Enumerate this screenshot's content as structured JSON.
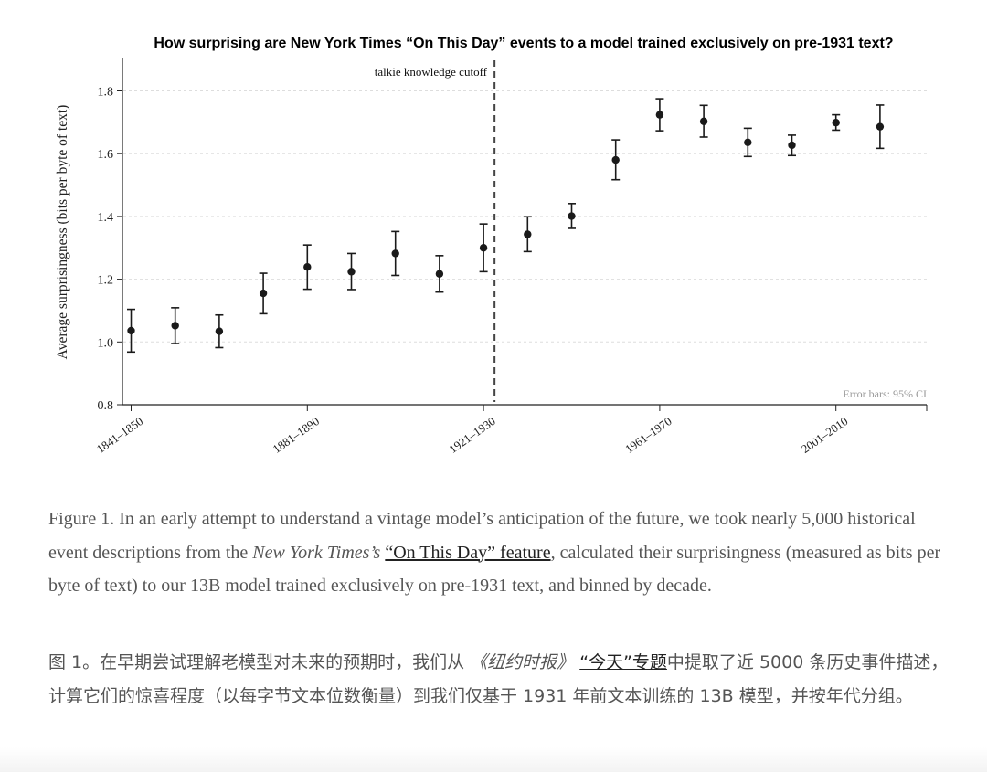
{
  "chart_data": {
    "type": "scatter",
    "title": "How surprising are New York Times “On This Day” events to a model trained exclusively on pre-1931 text?",
    "ylabel": "Average surprisingness (bits per byte of text)",
    "xlabel": "",
    "ylim": [
      0.8,
      1.9
    ],
    "y_ticks": [
      "0.8",
      "1.0",
      "1.2",
      "1.4",
      "1.6",
      "1.8"
    ],
    "x_ticks": [
      "1841–1850",
      "1881–1890",
      "1921–1930",
      "1961–1970",
      "2001–2010"
    ],
    "grid": "horizontal dashed",
    "error_bar_note": "Error bars: 95% CI",
    "cutoff_label": "talkie knowledge cutoff",
    "points": [
      {
        "x": "1841–1850",
        "y": 1.036,
        "lo": 0.968,
        "hi": 1.104
      },
      {
        "x": "1851–1860",
        "y": 1.052,
        "lo": 0.995,
        "hi": 1.109
      },
      {
        "x": "1861–1870",
        "y": 1.034,
        "lo": 0.982,
        "hi": 1.086
      },
      {
        "x": "1871–1880",
        "y": 1.155,
        "lo": 1.09,
        "hi": 1.219
      },
      {
        "x": "1881–1890",
        "y": 1.239,
        "lo": 1.168,
        "hi": 1.309
      },
      {
        "x": "1891–1900",
        "y": 1.224,
        "lo": 1.167,
        "hi": 1.282
      },
      {
        "x": "1901–1910",
        "y": 1.282,
        "lo": 1.212,
        "hi": 1.352
      },
      {
        "x": "1911–1920",
        "y": 1.217,
        "lo": 1.159,
        "hi": 1.275
      },
      {
        "x": "1921–1930",
        "y": 1.3,
        "lo": 1.224,
        "hi": 1.376
      },
      {
        "x": "1931–1940",
        "y": 1.343,
        "lo": 1.288,
        "hi": 1.399
      },
      {
        "x": "1941–1950",
        "y": 1.401,
        "lo": 1.362,
        "hi": 1.441
      },
      {
        "x": "1951–1960",
        "y": 1.58,
        "lo": 1.517,
        "hi": 1.644
      },
      {
        "x": "1961–1970",
        "y": 1.724,
        "lo": 1.673,
        "hi": 1.775
      },
      {
        "x": "1971–1980",
        "y": 1.703,
        "lo": 1.653,
        "hi": 1.754
      },
      {
        "x": "1981–1990",
        "y": 1.636,
        "lo": 1.591,
        "hi": 1.681
      },
      {
        "x": "1991–2000",
        "y": 1.627,
        "lo": 1.594,
        "hi": 1.659
      },
      {
        "x": "2001–2010",
        "y": 1.699,
        "lo": 1.675,
        "hi": 1.724
      },
      {
        "x": "2011–2020",
        "y": 1.686,
        "lo": 1.617,
        "hi": 1.755
      }
    ],
    "colors": {
      "points": "#1a1a1a",
      "axis": "#222222",
      "grid": "#dddddd",
      "cutoff_line": "#444444",
      "note": "#999999"
    }
  },
  "caption_en": {
    "prefix": "Figure 1. In an early attempt to understand a vintage model’s anticipation of the future, we took nearly 5,000 historical event descriptions from the ",
    "publication": "New York Times’s",
    "link_text": "“On This Day” feature",
    "suffix": ", calculated their surprisingness (measured as bits per byte of text) to our 13B model trained exclusively on pre-1931 text, and binned by decade."
  },
  "caption_zh": {
    "prefix": "图 1。在早期尝试理解老模型对未来的预期时，我们从 ",
    "publication": "《纽约时报》",
    "link_text": "“今天”专题",
    "suffix": "中提取了近 5000 条历史事件描述，计算它们的惊喜程度（以每字节文本位数衡量）到我们仅基于 1931 年前文本训练的 13B 模型，并按年代分组。"
  }
}
